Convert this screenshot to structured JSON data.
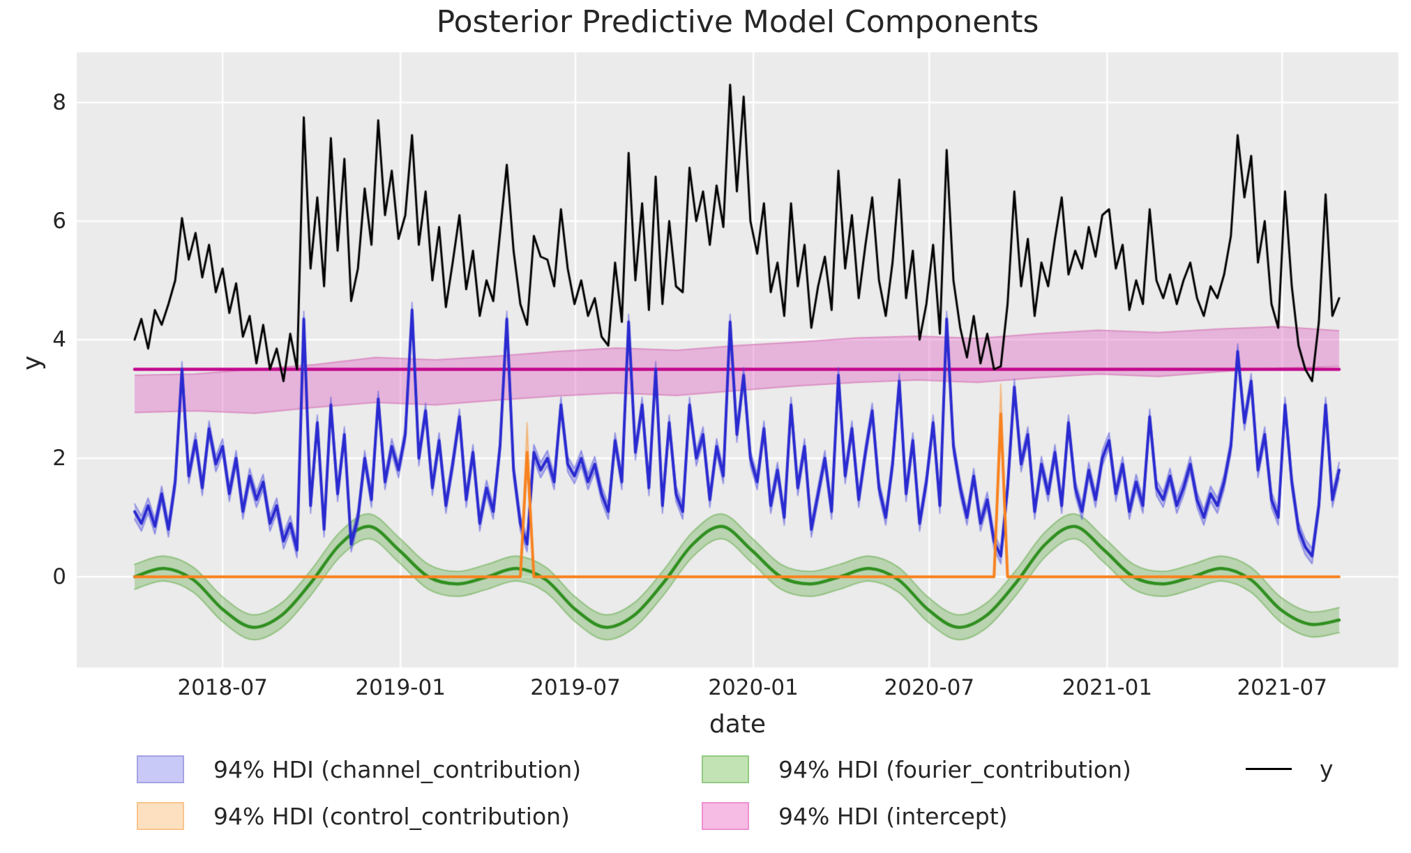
{
  "figure": {
    "title": "Posterior Predictive Model Components",
    "xlabel": "date",
    "ylabel": "y"
  },
  "axes": {
    "x_ticks": [
      {
        "date": "2018-07-01",
        "label": "2018-07"
      },
      {
        "date": "2019-01-01",
        "label": "2019-01"
      },
      {
        "date": "2019-07-01",
        "label": "2019-07"
      },
      {
        "date": "2020-01-01",
        "label": "2020-01"
      },
      {
        "date": "2020-07-01",
        "label": "2020-07"
      },
      {
        "date": "2021-01-01",
        "label": "2021-01"
      },
      {
        "date": "2021-07-01",
        "label": "2021-07"
      }
    ],
    "y_ticks": [
      {
        "value": 0,
        "label": "0"
      },
      {
        "value": 2,
        "label": "2"
      },
      {
        "value": 4,
        "label": "4"
      },
      {
        "value": 6,
        "label": "6"
      },
      {
        "value": 8,
        "label": "8"
      }
    ],
    "background": "#ebebeb",
    "grid_color": "#ffffff"
  },
  "legend": {
    "items": [
      {
        "id": "channel",
        "label": "94% HDI (channel_contribution)",
        "type": "patch",
        "fill": "#c9c9f8",
        "border": "#a2a2e2"
      },
      {
        "id": "fourier",
        "label": "94% HDI (fourier_contribution)",
        "type": "patch",
        "fill": "#c2e3b4",
        "border": "#93ca83"
      },
      {
        "id": "y",
        "label": "y",
        "type": "line",
        "color": "#000000"
      },
      {
        "id": "control",
        "label": "94% HDI (control_contribution)",
        "type": "patch",
        "fill": "#fde0bf",
        "border": "#f9c48e"
      },
      {
        "id": "intercept",
        "label": "94% HDI (intercept)",
        "type": "patch",
        "fill": "#f6bce4",
        "border": "#ee8fd0"
      }
    ]
  },
  "chart_data": {
    "type": "line",
    "title": "Posterior Predictive Model Components",
    "xlabel": "date",
    "ylabel": "y",
    "x_start": "2018-04-01",
    "x_step_days": 7,
    "n_points": 179,
    "x_end": "2021-08-30",
    "ylim": [
      -1.53,
      8.85
    ],
    "grid": true,
    "legend_position": "bottom",
    "series": [
      {
        "name": "y",
        "kind": "line",
        "color": "#000000",
        "linewidth": 3,
        "values": [
          4.0,
          4.35,
          3.85,
          4.5,
          4.25,
          4.6,
          5.0,
          6.05,
          5.35,
          5.8,
          5.05,
          5.6,
          4.8,
          5.2,
          4.45,
          4.95,
          4.05,
          4.4,
          3.6,
          4.25,
          3.5,
          3.85,
          3.3,
          4.1,
          3.5,
          7.75,
          5.2,
          6.4,
          4.9,
          7.4,
          5.5,
          7.05,
          4.65,
          5.2,
          6.55,
          5.6,
          7.7,
          6.1,
          6.85,
          5.7,
          6.1,
          7.45,
          5.6,
          6.5,
          5.0,
          5.9,
          4.55,
          5.3,
          6.1,
          4.85,
          5.5,
          4.4,
          5.0,
          4.65,
          5.8,
          6.95,
          5.5,
          4.6,
          4.25,
          5.75,
          5.4,
          5.35,
          4.9,
          6.2,
          5.2,
          4.6,
          5.0,
          4.4,
          4.7,
          4.05,
          3.9,
          5.3,
          4.3,
          7.15,
          5.0,
          6.3,
          4.5,
          6.75,
          4.6,
          6.0,
          4.9,
          4.8,
          6.9,
          6.0,
          6.5,
          5.6,
          6.6,
          5.9,
          8.3,
          6.5,
          8.1,
          6.0,
          5.45,
          6.3,
          4.8,
          5.3,
          4.4,
          6.3,
          4.9,
          5.6,
          4.2,
          4.9,
          5.4,
          4.5,
          6.85,
          5.2,
          6.1,
          4.7,
          5.6,
          6.4,
          5.0,
          4.4,
          5.3,
          6.7,
          4.7,
          5.5,
          4.0,
          4.6,
          5.6,
          4.1,
          7.2,
          5.0,
          4.2,
          3.7,
          4.4,
          3.6,
          4.1,
          3.5,
          3.55,
          4.6,
          6.5,
          4.9,
          5.7,
          4.4,
          5.3,
          4.9,
          5.7,
          6.4,
          5.1,
          5.5,
          5.2,
          5.9,
          5.4,
          6.1,
          6.2,
          5.2,
          5.6,
          4.5,
          5.0,
          4.6,
          6.2,
          5.0,
          4.7,
          5.1,
          4.6,
          5.0,
          5.3,
          4.7,
          4.4,
          4.9,
          4.7,
          5.1,
          5.75,
          7.45,
          6.4,
          7.1,
          5.3,
          6.0,
          4.6,
          4.2,
          6.5,
          4.9,
          3.9,
          3.5,
          3.3,
          4.3,
          6.45,
          4.4,
          4.7
        ]
      },
      {
        "name": "channel_contribution",
        "kind": "line+hdi",
        "hdi_label": "94% HDI (channel_contribution)",
        "color": "#2a2ad0",
        "band_color": "rgba(72,72,225,0.32)",
        "band_edge": "rgba(72,72,225,0.45)",
        "linewidth": 4,
        "hdi_halfwidth": 0.13,
        "values": [
          1.1,
          0.9,
          1.2,
          0.85,
          1.4,
          0.8,
          1.6,
          3.5,
          1.7,
          2.3,
          1.5,
          2.5,
          1.9,
          2.2,
          1.4,
          2.0,
          1.1,
          1.7,
          1.3,
          1.6,
          0.9,
          1.2,
          0.6,
          0.9,
          0.45,
          4.35,
          1.2,
          2.6,
          0.8,
          2.9,
          1.4,
          2.4,
          0.55,
          1.0,
          2.0,
          1.3,
          3.0,
          1.6,
          2.2,
          1.8,
          2.4,
          4.5,
          2.0,
          2.8,
          1.5,
          2.3,
          1.2,
          1.9,
          2.7,
          1.3,
          2.1,
          0.9,
          1.5,
          1.1,
          2.2,
          4.35,
          1.8,
          0.9,
          0.55,
          2.1,
          1.8,
          2.0,
          1.6,
          2.9,
          1.9,
          1.7,
          2.0,
          1.6,
          1.9,
          1.4,
          1.1,
          2.3,
          1.6,
          4.3,
          2.1,
          2.9,
          1.5,
          3.5,
          1.2,
          2.6,
          1.4,
          1.1,
          2.9,
          2.0,
          2.4,
          1.3,
          2.2,
          1.7,
          4.3,
          2.4,
          3.4,
          2.0,
          1.6,
          2.5,
          1.2,
          1.8,
          1.0,
          2.9,
          1.5,
          2.2,
          0.8,
          1.4,
          2.0,
          1.1,
          3.4,
          1.7,
          2.5,
          1.3,
          2.1,
          2.8,
          1.5,
          1.0,
          1.9,
          3.3,
          1.4,
          2.3,
          0.9,
          1.6,
          2.6,
          1.2,
          4.35,
          2.2,
          1.5,
          1.0,
          1.7,
          0.9,
          1.3,
          0.6,
          0.35,
          1.5,
          3.2,
          1.9,
          2.4,
          1.1,
          1.9,
          1.4,
          2.1,
          1.2,
          2.6,
          1.5,
          1.1,
          1.8,
          1.3,
          2.0,
          2.3,
          1.4,
          1.9,
          1.1,
          1.6,
          1.2,
          2.7,
          1.5,
          1.3,
          1.7,
          1.2,
          1.5,
          1.9,
          1.3,
          1.0,
          1.4,
          1.2,
          1.6,
          2.2,
          3.8,
          2.6,
          3.3,
          1.8,
          2.4,
          1.3,
          1.0,
          2.9,
          1.6,
          0.8,
          0.5,
          0.35,
          1.2,
          2.9,
          1.3,
          1.8
        ]
      },
      {
        "name": "control_contribution",
        "kind": "line+hdi",
        "hdi_label": "94% HDI (control_contribution)",
        "color": "#f8821f",
        "band_color": "rgba(250,146,44,0.35)",
        "band_edge": "rgba(250,146,44,0.45)",
        "linewidth": 4,
        "base_value": 0,
        "spikes": [
          {
            "date": "2019-05-12",
            "peak": 2.1,
            "hdi_hi": 2.6,
            "hdi_lo": 1.9
          },
          {
            "date": "2020-09-13",
            "peak": 2.75,
            "hdi_hi": 3.25,
            "hdi_lo": 2.5
          }
        ]
      },
      {
        "name": "fourier_contribution",
        "kind": "line+hdi",
        "hdi_label": "94% HDI (fourier_contribution)",
        "color": "#2f8f1f",
        "band_color": "rgba(85,165,55,0.32)",
        "band_edge": "rgba(85,165,55,0.5)",
        "linewidth": 4.5,
        "hdi_halfwidth": 0.21,
        "sampling": "monthly-evenly-spaced",
        "monthly_values": [
          0.0,
          0.14,
          -0.05,
          -0.55,
          -0.85,
          -0.65,
          -0.1,
          0.55,
          0.85,
          0.45,
          0.0,
          -0.12,
          0.0,
          0.14,
          -0.05,
          -0.55,
          -0.85,
          -0.65,
          -0.1,
          0.55,
          0.85,
          0.45,
          0.0,
          -0.12,
          0.0,
          0.14,
          -0.05,
          -0.55,
          -0.85,
          -0.65,
          -0.1,
          0.55,
          0.85,
          0.45,
          0.0,
          -0.12,
          0.0,
          0.14,
          -0.05,
          -0.55,
          -0.8,
          -0.73
        ]
      },
      {
        "name": "intercept",
        "kind": "hline+hdi",
        "hdi_label": "94% HDI (intercept)",
        "color": "#c2058c",
        "band_color": "rgba(225,105,195,0.42)",
        "band_edge": "rgba(214,125,185,0.75)",
        "linewidth": 4.5,
        "line_value": 3.5,
        "band_sampling": "evenly-spaced",
        "band_top": [
          3.4,
          3.42,
          3.5,
          3.58,
          3.7,
          3.66,
          3.72,
          3.8,
          3.86,
          3.82,
          3.9,
          3.96,
          4.03,
          4.06,
          4.02,
          4.1,
          4.16,
          4.12,
          4.18,
          4.22,
          4.15
        ],
        "band_bottom": [
          2.77,
          2.8,
          2.76,
          2.86,
          2.94,
          2.9,
          2.98,
          3.05,
          3.1,
          3.06,
          3.14,
          3.22,
          3.28,
          3.32,
          3.28,
          3.36,
          3.42,
          3.38,
          3.46,
          3.52,
          3.55
        ]
      }
    ]
  }
}
